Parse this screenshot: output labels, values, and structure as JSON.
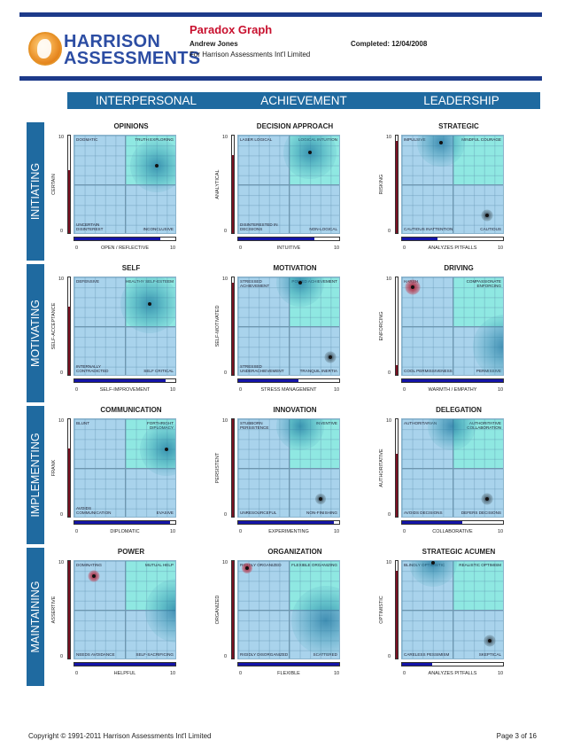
{
  "header": {
    "logo_line1": "HARRISON",
    "logo_line2": "ASSESSMENTS",
    "title": "Paradox Graph",
    "name": "Andrew Jones",
    "company": "For Harrison Assessments Int'l Limited",
    "completed": "Completed: 12/04/2008"
  },
  "columns": [
    "INTERPERSONAL",
    "ACHIEVEMENT",
    "LEADERSHIP"
  ],
  "rows": [
    "INITIATING",
    "MOTIVATING",
    "IMPLEMENTING",
    "MAINTAINING"
  ],
  "axis_ticks": {
    "max": "10",
    "min": "0"
  },
  "charts": [
    {
      "title": "OPINIONS",
      "tl": "DOGMATIC",
      "tr": "TRUTH EXPLORING",
      "bl": "UNCERTAIN DISINTEREST",
      "br": "INCONCLUSIVE",
      "ylabel": "CERTAIN",
      "xlabel": "OPEN / REFLECTIVE",
      "y_score": 6.5,
      "x_score": 8.5,
      "blobs": [
        {
          "x": 8.0,
          "y": 7.0,
          "size": 1.0,
          "color": "blue",
          "marker": true
        }
      ]
    },
    {
      "title": "DECISION APPROACH",
      "tl": "LASER LOGICAL",
      "tr": "LOGICAL INTUITION",
      "bl": "DISINTERESTED IN DECISIONS",
      "br": "NON-LOGICAL",
      "ylabel": "ANALYTICAL",
      "xlabel": "INTUITIVE",
      "y_score": 8.0,
      "x_score": 7.5,
      "blobs": [
        {
          "x": 7.0,
          "y": 8.3,
          "size": 1.0,
          "color": "blue",
          "marker": true
        }
      ]
    },
    {
      "title": "STRATEGIC",
      "tl": "IMPULSIVE",
      "tr": "MINDFUL COURAGE",
      "bl": "CAUTIOUS INATTENTION",
      "br": "CAUTIOUS",
      "ylabel": "RISKING",
      "xlabel": "ANALYZES PITFALLS",
      "y_score": 9.5,
      "x_score": 3.5,
      "blobs": [
        {
          "x": 3.8,
          "y": 9.3,
          "size": 0.9,
          "color": "blue",
          "marker": true
        },
        {
          "x": 8.3,
          "y": 2.0,
          "size": 0.22,
          "color": "gray",
          "marker": true
        }
      ]
    },
    {
      "title": "SELF",
      "tl": "DEFENSIVE",
      "tr": "HEALTHY SELF-ESTEEM",
      "bl": "INTERNALLY CONTRADICTED",
      "br": "SELF CRITICAL",
      "ylabel": "SELF-ACCEPTANCE",
      "xlabel": "SELF-IMPROVEMENT",
      "y_score": 7.0,
      "x_score": 9.0,
      "blobs": [
        {
          "x": 7.3,
          "y": 7.3,
          "size": 1.1,
          "color": "blue",
          "marker": true
        }
      ]
    },
    {
      "title": "MOTIVATION",
      "tl": "STRESSED ACHIEVEMENT",
      "tr": "POISED ACHIEVEMENT",
      "bl": "STRESSED UNDERACHIEVEMENT",
      "br": "TRANQUIL INERTIA",
      "ylabel": "SELF-MOTIVATED",
      "xlabel": "STRESS MANAGEMENT",
      "y_score": 9.5,
      "x_score": 6.0,
      "blobs": [
        {
          "x": 6.0,
          "y": 9.5,
          "size": 0.9,
          "color": "blue",
          "marker": true
        },
        {
          "x": 9.0,
          "y": 2.0,
          "size": 0.22,
          "color": "gray",
          "marker": true
        }
      ]
    },
    {
      "title": "DRIVING",
      "tl": "HARSH",
      "tr": "COMPASSIONATE ENFORCING",
      "bl": "COOL PERMISSIVENESS",
      "br": "PERMISSIVE",
      "ylabel": "ENFORCING",
      "xlabel": "WARMTH / EMPATHY",
      "y_score": 1.0,
      "x_score": 10.0,
      "blobs": [
        {
          "x": 1.0,
          "y": 9.0,
          "size": 0.28,
          "color": "red",
          "marker": true
        },
        {
          "x": 10.0,
          "y": 3.0,
          "size": 1.2,
          "color": "blue",
          "marker": false
        }
      ]
    },
    {
      "title": "COMMUNICATION",
      "tl": "BLUNT",
      "tr": "FORTHRIGHT DIPLOMACY",
      "bl": "AVOIDS COMMUNICATION",
      "br": "EVASIVE",
      "ylabel": "FRANK",
      "xlabel": "DIPLOMATIC",
      "y_score": 7.0,
      "x_score": 9.5,
      "blobs": [
        {
          "x": 9.0,
          "y": 7.0,
          "size": 1.0,
          "color": "blue",
          "marker": true
        }
      ]
    },
    {
      "title": "INNOVATION",
      "tl": "STUBBORN PERSISTENCE",
      "tr": "INVENTIVE",
      "bl": "UNRESOURCEFUL",
      "br": "NON-FINISHING",
      "ylabel": "PERSISTENT",
      "xlabel": "EXPERIMENTING",
      "y_score": 10.0,
      "x_score": 9.5,
      "blobs": [
        {
          "x": 6.0,
          "y": 9.3,
          "size": 0.9,
          "color": "blue",
          "marker": false
        },
        {
          "x": 8.0,
          "y": 2.0,
          "size": 0.2,
          "color": "gray",
          "marker": true
        }
      ]
    },
    {
      "title": "DELEGATION",
      "tl": "AUTHORITARIAN",
      "tr": "AUTHORITATIVE COLLABORATION",
      "bl": "AVOIDS DECISIONS",
      "br": "DEFERS DECISIONS",
      "ylabel": "AUTHORITATIVE",
      "xlabel": "COLLABORATIVE",
      "y_score": 6.5,
      "x_score": 6.0,
      "blobs": [
        {
          "x": 4.8,
          "y": 9.3,
          "size": 0.9,
          "color": "blue",
          "marker": false
        },
        {
          "x": 8.3,
          "y": 2.0,
          "size": 0.22,
          "color": "gray",
          "marker": true
        }
      ]
    },
    {
      "title": "POWER",
      "tl": "DOMINATING",
      "tr": "MUTUAL HELP",
      "bl": "NEEDS AVOIDANCE",
      "br": "SELF-SACRIFICING",
      "ylabel": "ASSERTIVE",
      "xlabel": "HELPFUL",
      "y_score": 10.0,
      "x_score": 10.0,
      "blobs": [
        {
          "x": 1.9,
          "y": 8.5,
          "size": 0.22,
          "color": "red",
          "marker": true
        },
        {
          "x": 10.0,
          "y": 5.0,
          "size": 1.2,
          "color": "blue",
          "marker": true
        }
      ]
    },
    {
      "title": "ORGANIZATION",
      "tl": "RIGIDLY ORGANIZED",
      "tr": "FLEXIBLE ORGANIZING",
      "bl": "RIGIDLY DISORGANIZED",
      "br": "SCATTERED",
      "ylabel": "ORGANIZED",
      "xlabel": "FLEXIBLE",
      "y_score": 10.0,
      "x_score": 10.0,
      "blobs": [
        {
          "x": 0.9,
          "y": 9.3,
          "size": 0.2,
          "color": "red",
          "marker": true
        },
        {
          "x": 8.5,
          "y": 4.0,
          "size": 1.3,
          "color": "blue",
          "marker": false
        }
      ]
    },
    {
      "title": "STRATEGIC ACUMEN",
      "tl": "BLINDLY OPTIMISTIC",
      "tr": "REALISTIC OPTIMISM",
      "bl": "CARELESS PESSIMISM",
      "br": "SKEPTICAL",
      "ylabel": "OPTIMISTIC",
      "xlabel": "ANALYZES PITFALLS",
      "y_score": 9.0,
      "x_score": 3.0,
      "blobs": [
        {
          "x": 3.0,
          "y": 9.8,
          "size": 0.9,
          "color": "blue",
          "marker": true
        },
        {
          "x": 8.5,
          "y": 2.0,
          "size": 0.22,
          "color": "gray",
          "marker": true
        }
      ]
    }
  ],
  "footer": {
    "copyright": "Copyright © 1991-2011 Harrison Assessments Int'l Limited",
    "page": "Page 3 of 16"
  }
}
